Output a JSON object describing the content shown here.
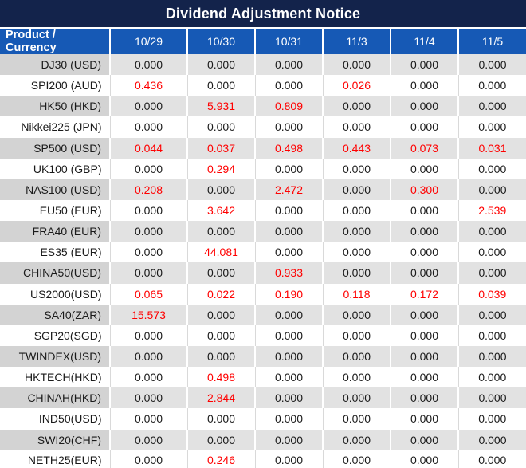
{
  "title": "Dividend Adjustment Notice",
  "colors": {
    "title_bg": "#13234B",
    "header_bg": "#1659B5",
    "header_text": "#FFFFFF",
    "row_alt_product_bg": "#D3D3D3",
    "row_alt_value_bg": "#E2E2E2",
    "value_text": "#1A1A1A",
    "nonzero_value_text": "#FF0000"
  },
  "table": {
    "columns": [
      "Product / Currency",
      "10/29",
      "10/30",
      "10/31",
      "11/3",
      "11/4",
      "11/5"
    ],
    "rows": [
      {
        "product": "DJ30 (USD)",
        "values": [
          "0.000",
          "0.000",
          "0.000",
          "0.000",
          "0.000",
          "0.000"
        ]
      },
      {
        "product": "SPI200 (AUD)",
        "values": [
          "0.436",
          "0.000",
          "0.000",
          "0.026",
          "0.000",
          "0.000"
        ]
      },
      {
        "product": "HK50 (HKD)",
        "values": [
          "0.000",
          "5.931",
          "0.809",
          "0.000",
          "0.000",
          "0.000"
        ]
      },
      {
        "product": "Nikkei225 (JPN)",
        "values": [
          "0.000",
          "0.000",
          "0.000",
          "0.000",
          "0.000",
          "0.000"
        ]
      },
      {
        "product": "SP500 (USD)",
        "values": [
          "0.044",
          "0.037",
          "0.498",
          "0.443",
          "0.073",
          "0.031"
        ]
      },
      {
        "product": "UK100 (GBP)",
        "values": [
          "0.000",
          "0.294",
          "0.000",
          "0.000",
          "0.000",
          "0.000"
        ]
      },
      {
        "product": "NAS100 (USD)",
        "values": [
          "0.208",
          "0.000",
          "2.472",
          "0.000",
          "0.300",
          "0.000"
        ]
      },
      {
        "product": "EU50 (EUR)",
        "values": [
          "0.000",
          "3.642",
          "0.000",
          "0.000",
          "0.000",
          "2.539"
        ]
      },
      {
        "product": "FRA40 (EUR)",
        "values": [
          "0.000",
          "0.000",
          "0.000",
          "0.000",
          "0.000",
          "0.000"
        ]
      },
      {
        "product": "ES35 (EUR)",
        "values": [
          "0.000",
          "44.081",
          "0.000",
          "0.000",
          "0.000",
          "0.000"
        ]
      },
      {
        "product": "CHINA50(USD)",
        "values": [
          "0.000",
          "0.000",
          "0.933",
          "0.000",
          "0.000",
          "0.000"
        ]
      },
      {
        "product": "US2000(USD)",
        "values": [
          "0.065",
          "0.022",
          "0.190",
          "0.118",
          "0.172",
          "0.039"
        ]
      },
      {
        "product": "SA40(ZAR)",
        "values": [
          "15.573",
          "0.000",
          "0.000",
          "0.000",
          "0.000",
          "0.000"
        ]
      },
      {
        "product": "SGP20(SGD)",
        "values": [
          "0.000",
          "0.000",
          "0.000",
          "0.000",
          "0.000",
          "0.000"
        ]
      },
      {
        "product": "TWINDEX(USD)",
        "values": [
          "0.000",
          "0.000",
          "0.000",
          "0.000",
          "0.000",
          "0.000"
        ]
      },
      {
        "product": "HKTECH(HKD)",
        "values": [
          "0.000",
          "0.498",
          "0.000",
          "0.000",
          "0.000",
          "0.000"
        ]
      },
      {
        "product": "CHINAH(HKD)",
        "values": [
          "0.000",
          "2.844",
          "0.000",
          "0.000",
          "0.000",
          "0.000"
        ]
      },
      {
        "product": "IND50(USD)",
        "values": [
          "0.000",
          "0.000",
          "0.000",
          "0.000",
          "0.000",
          "0.000"
        ]
      },
      {
        "product": "SWI20(CHF)",
        "values": [
          "0.000",
          "0.000",
          "0.000",
          "0.000",
          "0.000",
          "0.000"
        ]
      },
      {
        "product": "NETH25(EUR)",
        "values": [
          "0.000",
          "0.246",
          "0.000",
          "0.000",
          "0.000",
          "0.000"
        ]
      }
    ]
  }
}
